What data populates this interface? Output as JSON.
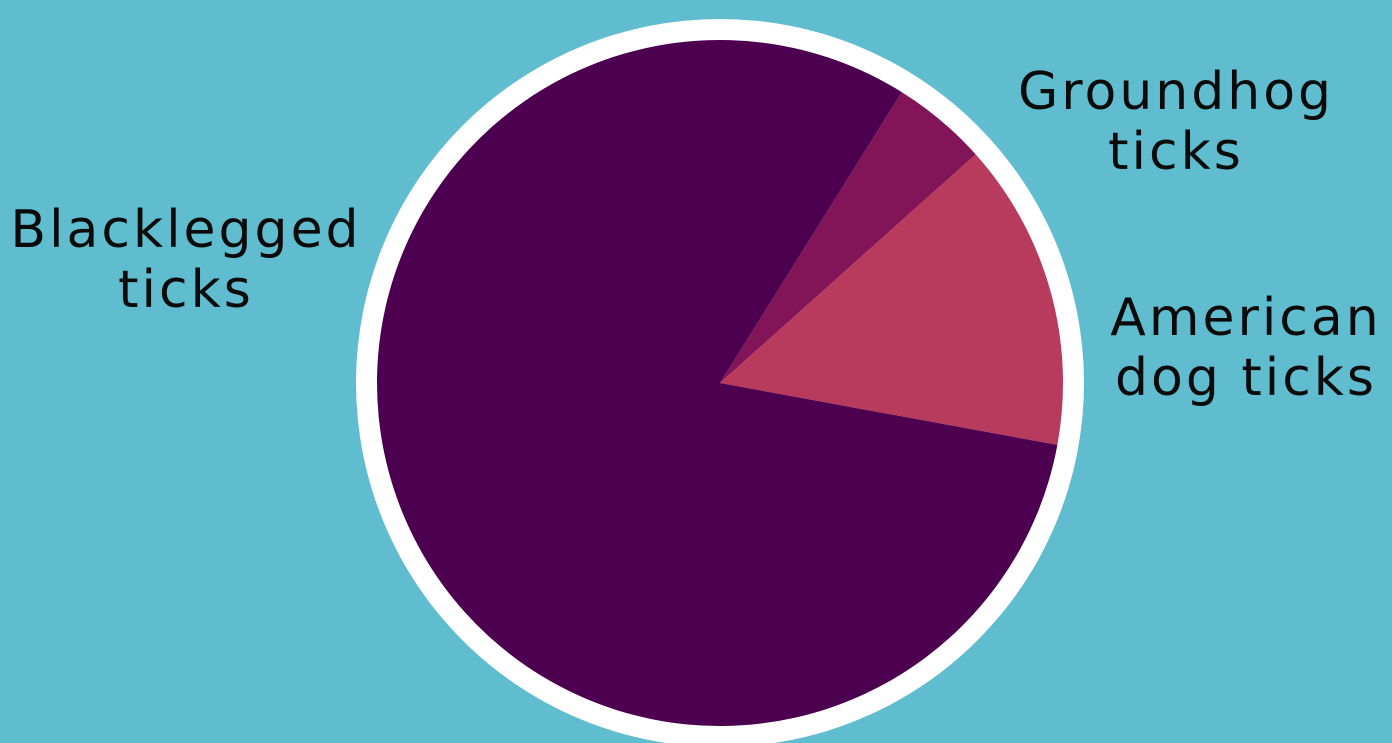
{
  "chart_data": {
    "type": "pie",
    "slices": [
      {
        "label_lines": [
          "Groundhog",
          "ticks"
        ],
        "value": 4.5,
        "color": "#821558"
      },
      {
        "label_lines": [
          "American",
          "dog ticks"
        ],
        "value": 14.5,
        "color": "#b83b5e"
      },
      {
        "label_lines": [
          "Blacklegged",
          "ticks"
        ],
        "value": 81.0,
        "color": "#4d004f"
      }
    ],
    "start_angle_deg": 58,
    "ring_color": "#ffffff",
    "background": "#60bdd0"
  }
}
